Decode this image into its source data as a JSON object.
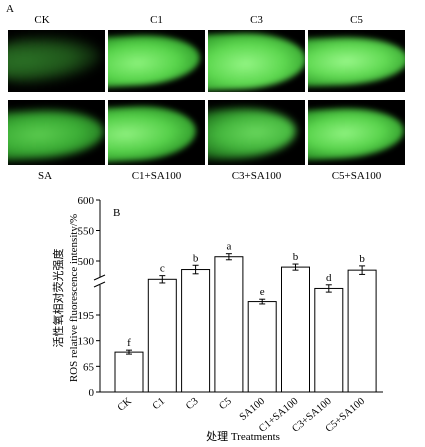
{
  "panel_a": {
    "label": "A",
    "top_row_labels": [
      "CK",
      "C1",
      "C3",
      "C5"
    ],
    "bottom_row_labels": [
      "SA",
      "C1+SA100",
      "C3+SA100",
      "C5+SA100"
    ]
  },
  "panel_b": {
    "label": "B"
  },
  "colors": {
    "bar_fill": "#ffffff",
    "axis": "#000000",
    "fluorescence": "#56d24a",
    "image_background": "#000000"
  },
  "chart_data": {
    "type": "bar",
    "categories": [
      "CK",
      "C1",
      "C3",
      "C5",
      "SA100",
      "C1+SA100",
      "C3+SA100",
      "C5+SA100"
    ],
    "values": [
      101,
      470,
      486,
      507,
      229,
      490,
      455,
      485
    ],
    "errors": [
      5,
      6,
      7,
      5,
      6,
      5,
      6,
      7
    ],
    "significance": [
      "f",
      "c",
      "b",
      "a",
      "e",
      "b",
      "d",
      "b"
    ],
    "xlabel": "处理 Treatments",
    "ylabel_cn": "活性氧相对荧光强度",
    "ylabel_en": "ROS relative fluorescence intensity/%",
    "yticks": [
      0,
      65,
      130,
      195,
      500,
      550,
      600
    ],
    "ylim": [
      0,
      600
    ],
    "y_axis_break": true,
    "grid": false
  }
}
